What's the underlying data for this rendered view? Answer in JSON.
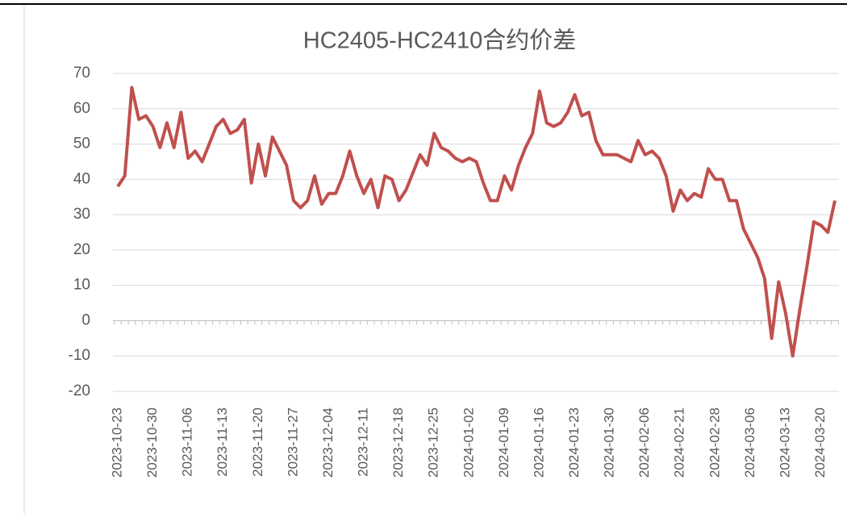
{
  "chart_data": {
    "type": "line",
    "title": "HC2405-HC2410合约价差",
    "categories": [
      "2023-10-23",
      null,
      null,
      null,
      null,
      "2023-10-30",
      null,
      null,
      null,
      null,
      "2023-11-06",
      null,
      null,
      null,
      null,
      "2023-11-13",
      null,
      null,
      null,
      null,
      "2023-11-20",
      null,
      null,
      null,
      null,
      "2023-11-27",
      null,
      null,
      null,
      null,
      "2023-12-04",
      null,
      null,
      null,
      null,
      "2023-12-11",
      null,
      null,
      null,
      null,
      "2023-12-18",
      null,
      null,
      null,
      null,
      "2023-12-25",
      null,
      null,
      null,
      null,
      "2024-01-02",
      null,
      null,
      null,
      null,
      "2024-01-09",
      null,
      null,
      null,
      null,
      "2024-01-16",
      null,
      null,
      null,
      null,
      "2024-01-23",
      null,
      null,
      null,
      null,
      "2024-01-30",
      null,
      null,
      null,
      null,
      "2024-02-06",
      null,
      null,
      null,
      null,
      "2024-02-21",
      null,
      null,
      null,
      null,
      "2024-02-28",
      null,
      null,
      null,
      null,
      "2024-03-06",
      null,
      null,
      null,
      null,
      "2024-03-13",
      null,
      null,
      null,
      null,
      "2024-03-20",
      null,
      null
    ],
    "series": [
      {
        "name": "HC2405-HC2410合约价差",
        "color": "#c0504d",
        "values": [
          38,
          41,
          66,
          57,
          58,
          55,
          49,
          56,
          49,
          59,
          46,
          48,
          45,
          50,
          55,
          57,
          53,
          54,
          57,
          39,
          50,
          41,
          52,
          48,
          44,
          34,
          32,
          34,
          41,
          33,
          36,
          36,
          41,
          48,
          41,
          36,
          40,
          32,
          41,
          40,
          34,
          37,
          42,
          47,
          44,
          53,
          49,
          48,
          46,
          45,
          46,
          45,
          39,
          34,
          34,
          41,
          37,
          44,
          49,
          53,
          65,
          56,
          55,
          56,
          59,
          64,
          58,
          59,
          51,
          47,
          47,
          47,
          46,
          45,
          51,
          47,
          48,
          46,
          41,
          31,
          37,
          34,
          36,
          35,
          43,
          40,
          40,
          34,
          34,
          26,
          22,
          18,
          12,
          -5,
          11,
          2,
          -10,
          3,
          15,
          28,
          27,
          25,
          34
        ]
      }
    ],
    "ylim": [
      -20,
      70
    ],
    "yticks": [
      -20,
      -10,
      0,
      10,
      20,
      30,
      40,
      50,
      60,
      70
    ],
    "grid": true
  }
}
